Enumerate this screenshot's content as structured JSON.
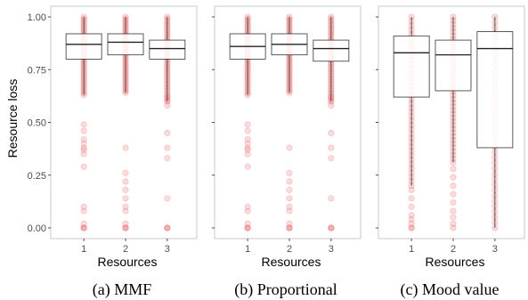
{
  "figure": {
    "ylabel": "Resource loss",
    "xlabel": "Resources"
  },
  "chart_data": [
    {
      "type": "boxplot",
      "caption": "(a) MMF",
      "xlabel": "Resources",
      "ylabel": "Resource loss",
      "categories": [
        "1",
        "2",
        "3"
      ],
      "y_ticks": [
        "0.00",
        "0.25",
        "0.50",
        "0.75",
        "1.00"
      ],
      "ylim": [
        0,
        1.0
      ],
      "grid": false,
      "boxes": [
        {
          "category": "1",
          "q1": 0.8,
          "median": 0.87,
          "q3": 0.92,
          "whisker_low": 0.63,
          "whisker_high": 1.0,
          "outliers": [
            0.0,
            0.0,
            0.0,
            0.02,
            0.08,
            0.1,
            0.29,
            0.35,
            0.37,
            0.38,
            0.4,
            0.42,
            0.46,
            0.49
          ]
        },
        {
          "category": "2",
          "q1": 0.82,
          "median": 0.88,
          "q3": 0.92,
          "whisker_low": 0.64,
          "whisker_high": 1.0,
          "outliers": [
            0.0,
            0.0,
            0.0,
            0.02,
            0.08,
            0.1,
            0.14,
            0.18,
            0.22,
            0.26,
            0.38
          ]
        },
        {
          "category": "3",
          "q1": 0.8,
          "median": 0.85,
          "q3": 0.89,
          "whisker_low": 0.6,
          "whisker_high": 1.0,
          "outliers": [
            0.0,
            0.0,
            0.0,
            0.14,
            0.33,
            0.38,
            0.45,
            0.58,
            0.6,
            0.62
          ]
        }
      ]
    },
    {
      "type": "boxplot",
      "caption": "(b) Proportional",
      "xlabel": "Resources",
      "categories": [
        "1",
        "2",
        "3"
      ],
      "ylim": [
        0,
        1.0
      ],
      "grid": false,
      "boxes": [
        {
          "category": "1",
          "q1": 0.8,
          "median": 0.86,
          "q3": 0.92,
          "whisker_low": 0.63,
          "whisker_high": 1.0,
          "outliers": [
            0.0,
            0.0,
            0.0,
            0.02,
            0.08,
            0.1,
            0.29,
            0.35,
            0.37,
            0.38,
            0.4,
            0.42,
            0.46,
            0.49
          ]
        },
        {
          "category": "2",
          "q1": 0.82,
          "median": 0.87,
          "q3": 0.92,
          "whisker_low": 0.64,
          "whisker_high": 1.0,
          "outliers": [
            0.0,
            0.0,
            0.0,
            0.02,
            0.08,
            0.1,
            0.14,
            0.18,
            0.22,
            0.26,
            0.38
          ]
        },
        {
          "category": "3",
          "q1": 0.79,
          "median": 0.85,
          "q3": 0.89,
          "whisker_low": 0.6,
          "whisker_high": 1.0,
          "outliers": [
            0.0,
            0.0,
            0.0,
            0.14,
            0.33,
            0.38,
            0.45,
            0.58,
            0.6,
            0.62
          ]
        }
      ]
    },
    {
      "type": "boxplot",
      "caption": "(c) Mood value",
      "xlabel": "Resources",
      "categories": [
        "1",
        "2",
        "3"
      ],
      "ylim": [
        0,
        1.0
      ],
      "grid": false,
      "boxes": [
        {
          "category": "1",
          "q1": 0.62,
          "median": 0.83,
          "q3": 0.91,
          "whisker_low": 0.2,
          "whisker_high": 1.0,
          "outliers": [
            0.0,
            0.0,
            0.02,
            0.04,
            0.06,
            0.1,
            0.14,
            0.18
          ]
        },
        {
          "category": "2",
          "q1": 0.65,
          "median": 0.82,
          "q3": 0.89,
          "whisker_low": 0.31,
          "whisker_high": 1.0,
          "outliers": [
            0.0,
            0.02,
            0.05,
            0.08,
            0.12,
            0.16,
            0.2,
            0.24,
            0.28
          ]
        },
        {
          "category": "3",
          "q1": 0.38,
          "median": 0.85,
          "q3": 0.93,
          "whisker_low": 0.0,
          "whisker_high": 1.0,
          "outliers": []
        }
      ]
    }
  ]
}
